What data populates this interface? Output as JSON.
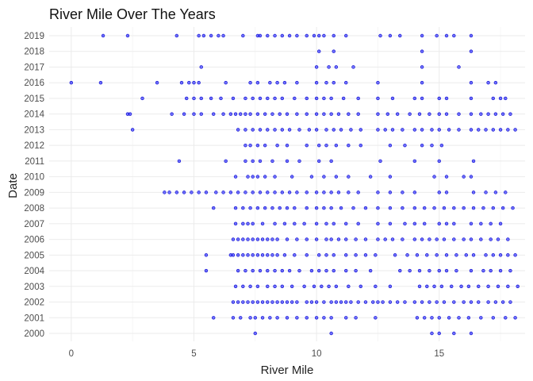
{
  "chart_data": {
    "type": "scatter",
    "title": "River Mile Over The Years",
    "xlabel": "River Mile",
    "ylabel": "Date",
    "xlim": [
      -0.9,
      18.5
    ],
    "xticks": [
      0,
      5,
      10,
      15
    ],
    "y_categories": [
      "2000",
      "2001",
      "2002",
      "2003",
      "2004",
      "2005",
      "2006",
      "2007",
      "2008",
      "2009",
      "2010",
      "2011",
      "2012",
      "2013",
      "2014",
      "2015",
      "2016",
      "2017",
      "2018",
      "2019"
    ],
    "grid": true,
    "legend": "none",
    "point_color": "#0000ff",
    "series": [
      {
        "y": "2000",
        "x": [
          7.5,
          10.6,
          14.7,
          15.0,
          15.6,
          16.3
        ]
      },
      {
        "y": "2001",
        "x": [
          5.8,
          6.6,
          6.9,
          7.3,
          7.5,
          7.8,
          8.1,
          8.4,
          8.8,
          9.2,
          9.6,
          10.0,
          10.3,
          10.6,
          11.2,
          11.6,
          12.4,
          14.1,
          14.4,
          14.7,
          15.0,
          15.4,
          15.8,
          16.2,
          16.7,
          17.2,
          17.7,
          18.1
        ]
      },
      {
        "y": "2002",
        "x": [
          6.6,
          6.8,
          7.0,
          7.2,
          7.4,
          7.6,
          7.8,
          8.0,
          8.2,
          8.4,
          8.6,
          8.8,
          9.0,
          9.2,
          9.6,
          9.8,
          10.0,
          10.3,
          10.6,
          10.8,
          11.0,
          11.2,
          11.4,
          11.7,
          12.0,
          12.3,
          12.5,
          12.7,
          13.0,
          13.3,
          13.6,
          14.0,
          14.3,
          14.6,
          14.9,
          15.2,
          15.6,
          16.0,
          16.3,
          16.6,
          17.0,
          17.3,
          17.6,
          17.9
        ]
      },
      {
        "y": "2003",
        "x": [
          6.7,
          7.0,
          7.3,
          7.6,
          8.0,
          8.3,
          8.6,
          9.0,
          9.5,
          9.9,
          10.2,
          10.5,
          10.8,
          11.3,
          11.8,
          12.4,
          13.0,
          14.2,
          14.5,
          14.8,
          15.1,
          15.5,
          15.9,
          16.2,
          16.6,
          17.0,
          17.4,
          17.8,
          18.2
        ]
      },
      {
        "y": "2004",
        "x": [
          5.5,
          6.8,
          7.1,
          7.4,
          7.7,
          8.0,
          8.3,
          8.6,
          8.9,
          9.3,
          9.8,
          10.1,
          10.4,
          10.7,
          11.2,
          11.6,
          12.2,
          13.4,
          13.8,
          14.2,
          14.6,
          15.0,
          15.3,
          15.7,
          16.3,
          16.8,
          17.1,
          17.5,
          17.9
        ]
      },
      {
        "y": "2005",
        "x": [
          5.5,
          6.5,
          6.6,
          6.8,
          7.0,
          7.2,
          7.4,
          7.6,
          7.8,
          8.0,
          8.2,
          8.4,
          8.7,
          9.1,
          9.6,
          10.1,
          10.4,
          10.7,
          11.2,
          11.6,
          12.0,
          12.4,
          13.2,
          13.7,
          14.1,
          14.5,
          14.9,
          15.3,
          15.7,
          16.1,
          16.4,
          16.9,
          17.2,
          17.5,
          17.8,
          18.1
        ]
      },
      {
        "y": "2006",
        "x": [
          6.6,
          6.8,
          7.0,
          7.2,
          7.4,
          7.6,
          7.8,
          8.0,
          8.2,
          8.4,
          8.8,
          9.2,
          9.6,
          10.0,
          10.4,
          10.6,
          10.9,
          11.2,
          11.6,
          12.0,
          12.5,
          12.8,
          13.1,
          13.5,
          14.0,
          14.3,
          14.6,
          14.9,
          15.2,
          15.6,
          16.0,
          16.3,
          16.7,
          17.1,
          17.4,
          17.8
        ]
      },
      {
        "y": "2007",
        "x": [
          6.7,
          7.0,
          7.2,
          7.4,
          7.8,
          8.3,
          8.7,
          9.1,
          9.5,
          10.0,
          10.4,
          10.7,
          11.2,
          11.7,
          12.5,
          13.0,
          13.6,
          14.0,
          14.4,
          15.0,
          15.3,
          15.6,
          16.3,
          16.7,
          17.1,
          17.5
        ]
      },
      {
        "y": "2008",
        "x": [
          5.8,
          6.7,
          7.0,
          7.3,
          7.6,
          7.9,
          8.2,
          8.5,
          8.8,
          9.1,
          9.6,
          10.0,
          10.3,
          10.6,
          11.0,
          11.5,
          12.0,
          12.5,
          13.0,
          13.5,
          14.0,
          14.4,
          14.8,
          15.2,
          15.6,
          16.0,
          16.4,
          16.8,
          17.2,
          17.6,
          18.0
        ]
      },
      {
        "y": "2009",
        "x": [
          3.8,
          4.0,
          4.3,
          4.6,
          4.9,
          5.2,
          5.5,
          5.9,
          6.2,
          6.5,
          6.8,
          7.1,
          7.4,
          7.7,
          8.0,
          8.3,
          8.6,
          8.9,
          9.2,
          9.6,
          10.0,
          10.3,
          10.6,
          10.9,
          11.3,
          11.7,
          12.5,
          13.0,
          13.5,
          14.0,
          15.0,
          15.3,
          16.4,
          16.9,
          17.3,
          17.7
        ]
      },
      {
        "y": "2010",
        "x": [
          6.7,
          7.2,
          7.4,
          7.6,
          7.9,
          8.3,
          9.0,
          9.8,
          10.3,
          10.8,
          11.3,
          12.2,
          13.0,
          14.8,
          15.3,
          16.0,
          16.3
        ]
      },
      {
        "y": "2011",
        "x": [
          4.4,
          6.3,
          7.1,
          7.4,
          7.7,
          8.2,
          8.8,
          9.3,
          10.1,
          10.6,
          12.6,
          14.0,
          15.0,
          16.4
        ]
      },
      {
        "y": "2012",
        "x": [
          7.1,
          7.3,
          7.6,
          7.9,
          8.4,
          8.8,
          9.6,
          10.1,
          10.4,
          10.8,
          11.3,
          11.8,
          13.0,
          13.6,
          14.3,
          14.7,
          15.1
        ]
      },
      {
        "y": "2013",
        "x": [
          2.5,
          6.8,
          7.1,
          7.4,
          7.7,
          8.0,
          8.3,
          8.6,
          8.9,
          9.3,
          9.7,
          10.0,
          10.4,
          10.7,
          11.0,
          11.4,
          11.8,
          12.5,
          12.8,
          13.1,
          13.5,
          14.0,
          14.3,
          14.7,
          15.0,
          15.4,
          15.8,
          16.3,
          16.6,
          16.9,
          17.2,
          17.5,
          17.8,
          18.1
        ]
      },
      {
        "y": "2014",
        "x": [
          2.3,
          2.4,
          4.1,
          4.6,
          5.0,
          5.3,
          5.8,
          6.2,
          6.5,
          6.7,
          6.9,
          7.1,
          7.3,
          7.6,
          7.9,
          8.2,
          8.5,
          8.8,
          9.2,
          9.6,
          10.0,
          10.3,
          10.6,
          10.9,
          11.3,
          11.7,
          12.5,
          12.9,
          13.3,
          13.8,
          14.2,
          14.6,
          15.0,
          15.3,
          15.8,
          16.3,
          16.7,
          17.0,
          17.3,
          17.6,
          17.9
        ]
      },
      {
        "y": "2015",
        "x": [
          2.9,
          4.7,
          5.0,
          5.3,
          5.7,
          6.1,
          6.6,
          7.1,
          7.4,
          7.7,
          8.0,
          8.3,
          8.6,
          9.1,
          9.6,
          10.0,
          10.3,
          10.6,
          11.1,
          11.7,
          12.5,
          13.1,
          14.0,
          14.3,
          15.0,
          15.3,
          16.3,
          17.2,
          17.5,
          17.7
        ]
      },
      {
        "y": "2016",
        "x": [
          0.0,
          1.2,
          3.5,
          4.5,
          4.8,
          5.0,
          5.2,
          6.3,
          7.3,
          7.6,
          8.1,
          8.4,
          8.7,
          9.2,
          10.0,
          10.4,
          10.7,
          11.2,
          12.5,
          14.3,
          16.3,
          17.0,
          17.3
        ]
      },
      {
        "y": "2017",
        "x": [
          5.3,
          10.0,
          10.5,
          10.8,
          11.5,
          14.3,
          15.8
        ]
      },
      {
        "y": "2018",
        "x": [
          10.1,
          10.7,
          14.3,
          16.3
        ]
      },
      {
        "y": "2019",
        "x": [
          1.3,
          2.3,
          4.3,
          5.2,
          5.4,
          5.7,
          6.0,
          6.2,
          7.0,
          7.6,
          7.7,
          8.0,
          8.3,
          8.6,
          8.9,
          9.2,
          9.6,
          9.9,
          10.1,
          10.3,
          10.7,
          11.2,
          12.6,
          13.0,
          13.4,
          14.3,
          14.9,
          15.3,
          15.6,
          16.3
        ]
      }
    ]
  }
}
